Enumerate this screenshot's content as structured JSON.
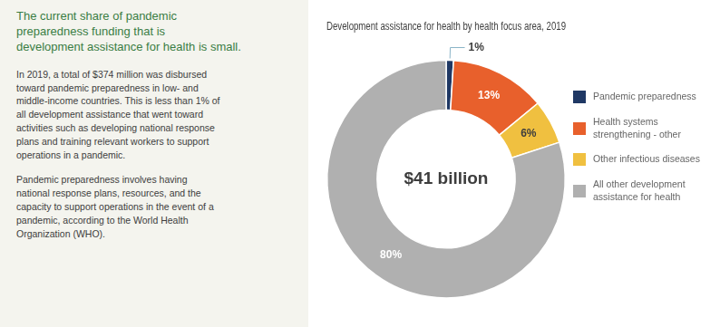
{
  "chart_data": {
    "type": "doughnut",
    "title": "Development assistance for health by health focus area, 2019",
    "categories": [
      "Pandemic preparedness",
      "Health systems\nstrengthening - other",
      "Other infectious diseases",
      "All other development\nassistance for health"
    ],
    "values": [
      1,
      13,
      6,
      80
    ],
    "value_labels": [
      "1%",
      "13%",
      "6%",
      "80%"
    ],
    "data_labels": true,
    "colors": [
      "#1f3864",
      "#e8602c",
      "#f0c040",
      "#b0b0b0"
    ],
    "legend": "right",
    "annotations": [
      "$41 billion",
      "The current share of pandemic\npreparedness funding that is\ndevelopment assistance for health is small.",
      "In 2019, a total of $374 million was disbursed\ntoward pandemic preparedness in low- and\nmiddle-income countries. This is less than 1% of\nall development assistance that went toward\nactivities such as developing national response\nplans and training relevant workers to support\noperations in a pandemic.",
      "Pandemic preparedness involves having\nnational response plans, resources, and the\ncapacity to support operations in the event of a\npandemic, according to the World Health\nOrganization (WHO)."
    ]
  }
}
